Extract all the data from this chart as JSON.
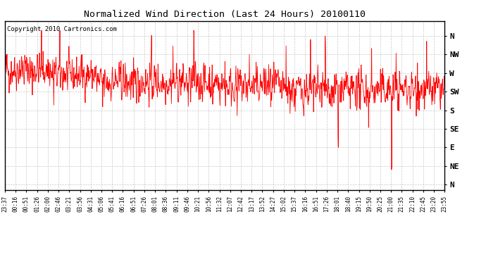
{
  "title": "Normalized Wind Direction (Last 24 Hours) 20100110",
  "copyright_text": "Copyright 2010 Cartronics.com",
  "line_color": "#FF0000",
  "background_color": "#FFFFFF",
  "plot_bg_color": "#FFFFFF",
  "grid_color": "#BBBBBB",
  "ytick_labels": [
    "N",
    "NW",
    "W",
    "SW",
    "S",
    "SE",
    "E",
    "NE",
    "N"
  ],
  "ytick_values": [
    8,
    7,
    6,
    5,
    4,
    3,
    2,
    1,
    0
  ],
  "ylim": [
    -0.3,
    8.8
  ],
  "xtick_labels": [
    "23:37",
    "00:16",
    "00:51",
    "01:26",
    "02:00",
    "02:46",
    "03:21",
    "03:56",
    "04:31",
    "05:06",
    "05:41",
    "06:16",
    "06:51",
    "07:26",
    "08:01",
    "08:36",
    "09:11",
    "09:46",
    "10:21",
    "10:56",
    "11:32",
    "12:07",
    "12:42",
    "13:17",
    "13:52",
    "14:27",
    "15:02",
    "15:37",
    "16:16",
    "16:51",
    "17:26",
    "18:01",
    "18:40",
    "19:15",
    "19:50",
    "20:25",
    "21:00",
    "21:35",
    "22:10",
    "22:45",
    "23:20",
    "23:55"
  ],
  "seed": 42,
  "n_points": 1440,
  "base_level": 5.5,
  "noise_std": 0.7
}
